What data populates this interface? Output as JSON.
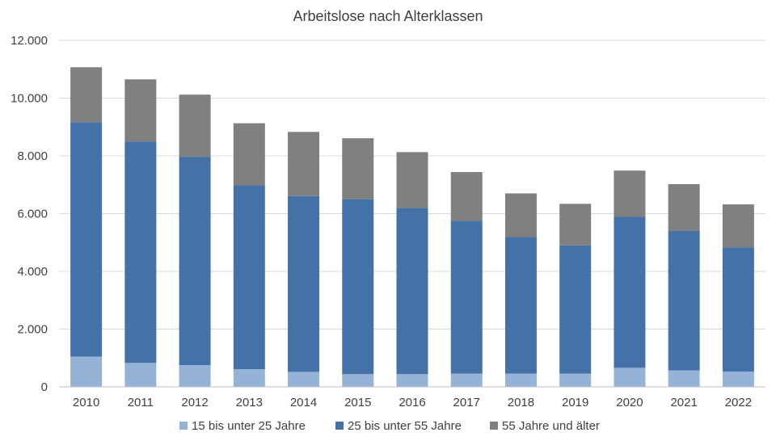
{
  "chart_data": {
    "type": "bar",
    "stacked": true,
    "title": "Arbeitslose nach Alterklassen",
    "xlabel": "",
    "ylabel": "",
    "categories": [
      "2010",
      "2011",
      "2012",
      "2013",
      "2014",
      "2015",
      "2016",
      "2017",
      "2018",
      "2019",
      "2020",
      "2021",
      "2022"
    ],
    "series": [
      {
        "name": "15 bis unter 25 Jahre",
        "color": "#95b3d7",
        "values": [
          1050,
          830,
          750,
          610,
          520,
          440,
          440,
          460,
          460,
          460,
          660,
          570,
          530
        ]
      },
      {
        "name": "25 bis unter 55 Jahre",
        "color": "#4472a8",
        "values": [
          8120,
          7670,
          7220,
          6370,
          6090,
          6060,
          5760,
          5290,
          4730,
          4440,
          5230,
          4830,
          4300
        ]
      },
      {
        "name": "55 Jahre und älter",
        "color": "#808080",
        "values": [
          1900,
          2150,
          2150,
          2150,
          2220,
          2110,
          1930,
          1690,
          1510,
          1440,
          1600,
          1620,
          1490
        ]
      }
    ],
    "ylim": [
      0,
      12000
    ],
    "yticks": [
      0,
      2000,
      4000,
      6000,
      8000,
      10000,
      12000
    ],
    "ytick_labels": [
      "0",
      "2.000",
      "4.000",
      "6.000",
      "8.000",
      "10.000",
      "12.000"
    ],
    "grid": true,
    "legend_position": "bottom"
  }
}
